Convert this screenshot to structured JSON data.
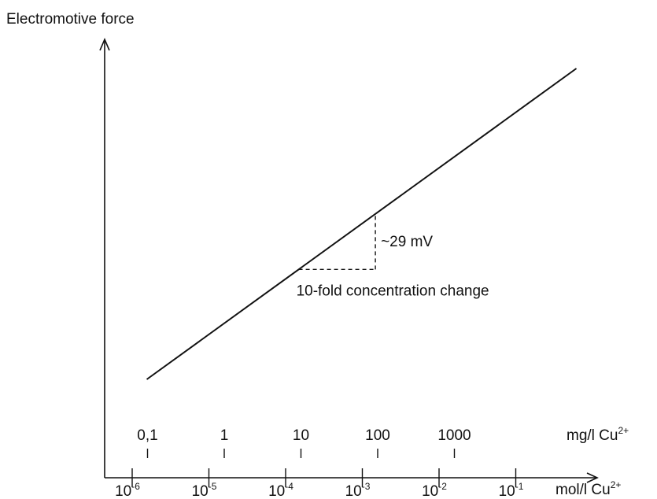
{
  "chart_data": {
    "type": "line",
    "ylabel": "Electromotive force",
    "x_top_label": "mg/l Cu",
    "x_top_label_sup": "2+",
    "x_bottom_label": "mol/l Cu",
    "x_bottom_label_sup": "2+",
    "x_scale": "log",
    "xlim_log10_mol": [
      -6.3,
      -0.75
    ],
    "top_ticks": [
      {
        "label": "0,1",
        "log10_mol": -5.8
      },
      {
        "label": "1",
        "log10_mol": -4.8
      },
      {
        "label": "10",
        "log10_mol": -3.8
      },
      {
        "label": "100",
        "log10_mol": -2.8
      },
      {
        "label": "1000",
        "log10_mol": -1.8
      }
    ],
    "bottom_ticks": [
      {
        "base": "10",
        "exp": "-6",
        "log10_mol": -6
      },
      {
        "base": "10",
        "exp": "-5",
        "log10_mol": -5
      },
      {
        "base": "10",
        "exp": "-4",
        "log10_mol": -4
      },
      {
        "base": "10",
        "exp": "-3",
        "log10_mol": -3
      },
      {
        "base": "10",
        "exp": "-2",
        "log10_mol": -2
      },
      {
        "base": "10",
        "exp": "-1",
        "log10_mol": -1
      }
    ],
    "series": [
      {
        "values_log10_mol": [
          -5.81,
          -0.21
        ],
        "emf_relative": [
          0.0,
          1.0
        ]
      }
    ],
    "slope_annotation": {
      "label_y": "~29 mV",
      "label_x": "10-fold concentration change",
      "from_log10_mol": -3.83,
      "to_log10_mol": -2.83
    },
    "grid": false,
    "legend": "none"
  }
}
